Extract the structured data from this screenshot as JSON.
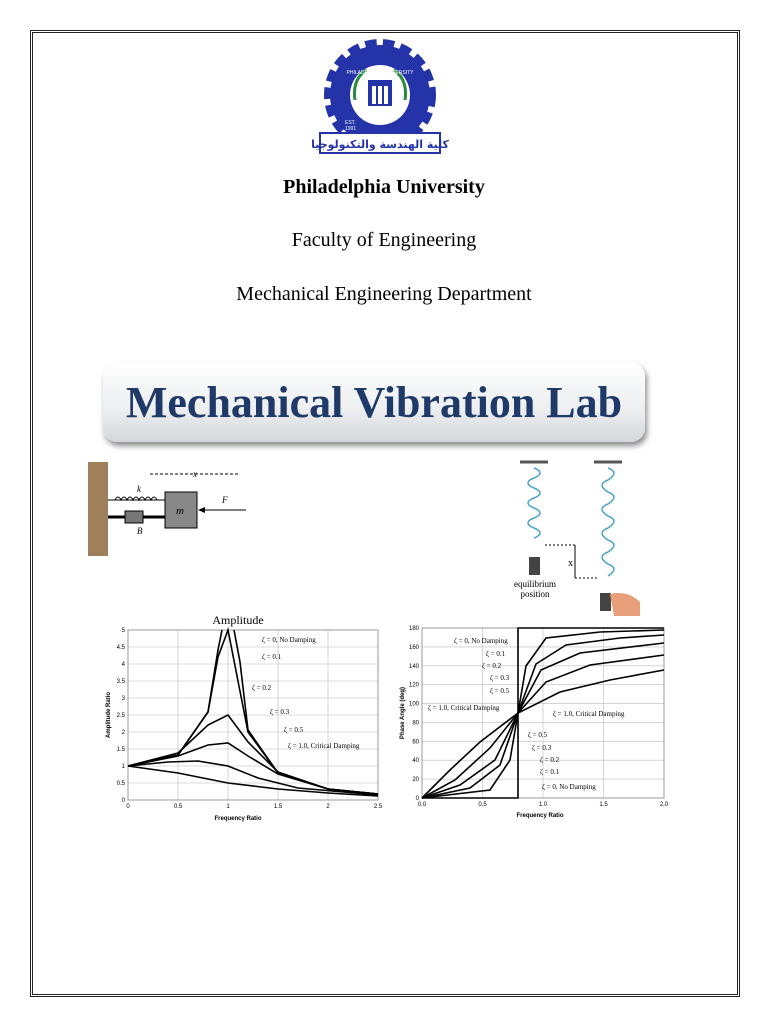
{
  "logo": {
    "arabic": "كلية الهندسة والتكنولوجيا",
    "ring": "PHILADELPHIA UNIVERSITY",
    "est": "EST.",
    "year": "1991"
  },
  "header": {
    "university": "Philadelphia University",
    "faculty": "Faculty of Engineering",
    "department": "Mechanical Engineering Department"
  },
  "title": "Mechanical Vibration Lab",
  "spring_mass": {
    "spring": "k",
    "mass": "m",
    "force": "F",
    "damper": "B",
    "displacement": "x"
  },
  "pendulum": {
    "displacement": "x",
    "label_line1": "equilibrium",
    "label_line2": "position"
  },
  "amplitude_chart": {
    "title": "Amplitude",
    "x_label": "Frequency Ratio",
    "y_label": "Amplitude Ratio",
    "xticks": [
      "0",
      "0.5",
      "1",
      "1.5",
      "2",
      "2.5"
    ],
    "yticks": [
      "0",
      "0.5",
      "1",
      "1.5",
      "2",
      "2.5",
      "3",
      "3.5",
      "4",
      "4.5",
      "5"
    ],
    "labels": [
      "ζ = 0, No Damping",
      "ζ = 0.1",
      "ζ = 0.2",
      "ζ = 0.3",
      "ζ = 0.5",
      "ζ = 1.0, Critical Damping"
    ]
  },
  "phase_chart": {
    "x_label": "Frequency Ratio",
    "y_label": "Phase Angle (deg)",
    "xticks": [
      "0.0",
      "0.5",
      "1.0",
      "1.5",
      "2.0"
    ],
    "yticks": [
      "0",
      "20",
      "40",
      "60",
      "80",
      "100",
      "120",
      "140",
      "160",
      "180"
    ],
    "upper_labels": [
      "ζ = 0, No Damping",
      "ζ = 0.1",
      "ζ = 0.2",
      "ζ = 0.3",
      "ζ = 0.5"
    ],
    "critical_labels": [
      "ζ = 1.0, Critical Damping",
      "ζ = 1.0, Critical Damping"
    ],
    "lower_labels": [
      "ζ = 0.5",
      "ζ = 0.3",
      "ζ = 0.2",
      "ζ = 0.1",
      "ζ = 0, No Damping"
    ]
  }
}
